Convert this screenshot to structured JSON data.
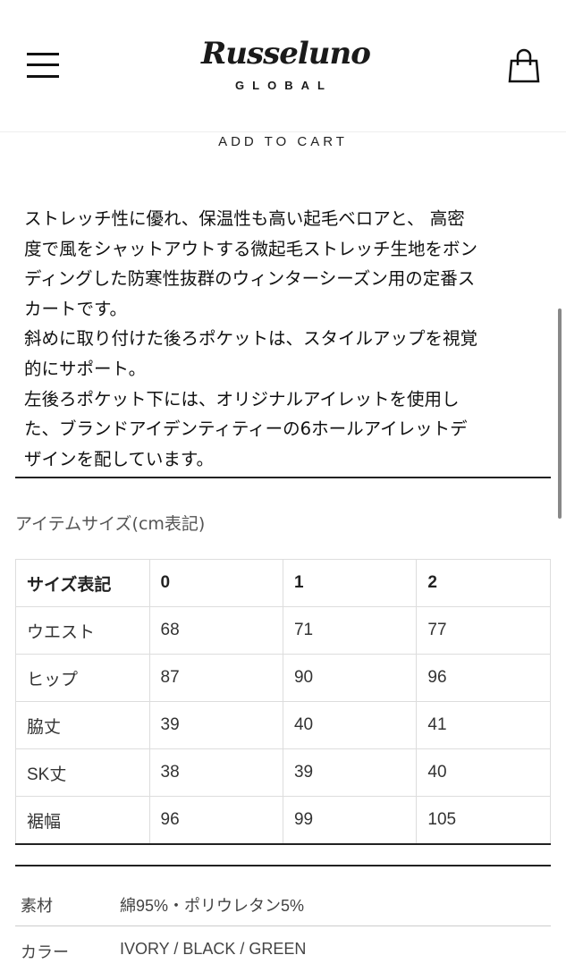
{
  "header": {
    "logo_text": "Russeluno",
    "logo_subtext": "GLOBAL",
    "menu_icon": "hamburger-menu-icon",
    "cart_icon": "shopping-bag-icon"
  },
  "add_to_cart_label": "ADD TO CART",
  "description": {
    "lines": [
      "ストレッチ性に優れ、保温性も高い起毛ベロアと、 高密",
      "度で風をシャットアウトする微起毛ストレッチ生地をボン",
      "ディングした防寒性抜群のウィンターシーズン用の定番ス",
      "カートです。",
      "斜めに取り付けた後ろポケットは、スタイルアップを視覚",
      "的にサポート。",
      "左後ろポケット下には、オリジナルアイレットを使用し",
      "た、ブランドアイデンティティーの6ホールアイレットデ",
      "ザインを配しています。"
    ]
  },
  "size_table": {
    "title": "アイテムサイズ(cm表記)",
    "header": [
      "サイズ表記",
      "0",
      "1",
      "2"
    ],
    "rows": [
      [
        "ウエスト",
        "68",
        "71",
        "77"
      ],
      [
        "ヒップ",
        "87",
        "90",
        "96"
      ],
      [
        "脇丈",
        "39",
        "40",
        "41"
      ],
      [
        "SK丈",
        "38",
        "39",
        "40"
      ],
      [
        "裾幅",
        "96",
        "99",
        "105"
      ]
    ]
  },
  "specs": [
    {
      "label": "素材",
      "value": "綿95%・ポリウレタン5%"
    },
    {
      "label": "カラー",
      "value": "IVORY / BLACK / GREEN"
    }
  ]
}
